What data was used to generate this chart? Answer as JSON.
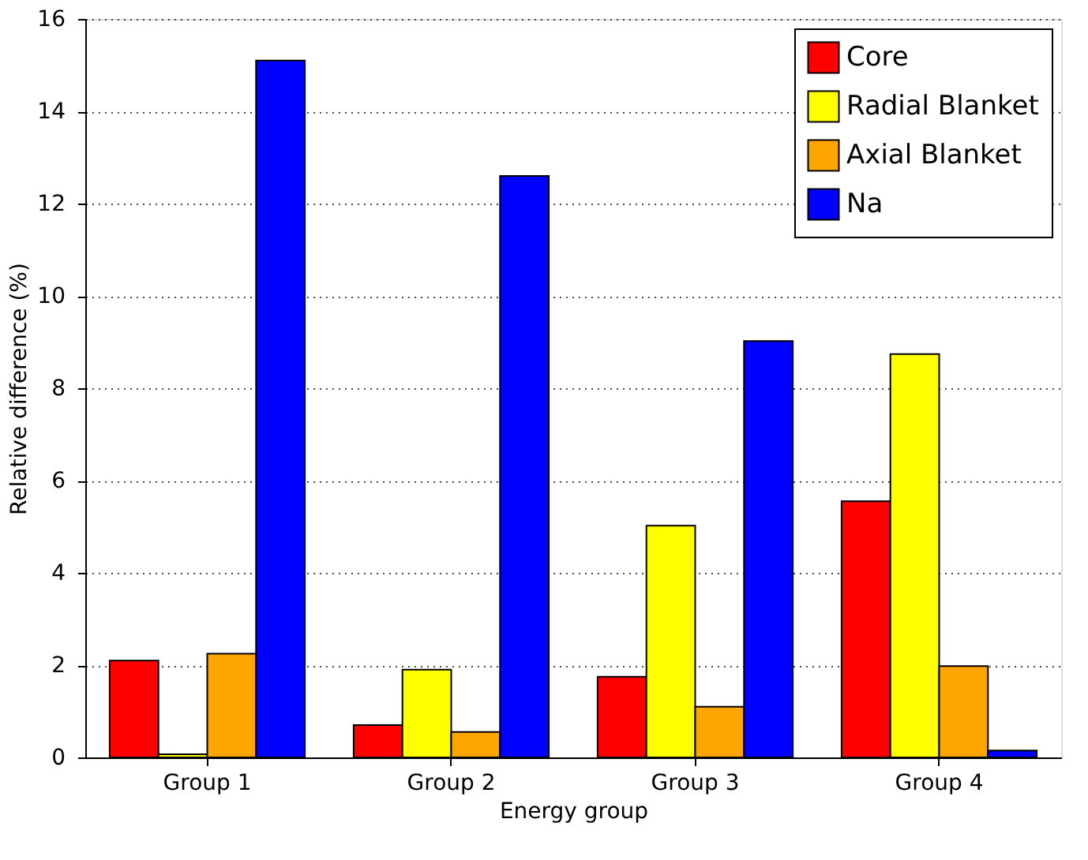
{
  "chart_data": {
    "type": "bar",
    "xlabel": "Energy group",
    "ylabel": "Relative difference (%)",
    "categories": [
      "Group 1",
      "Group 2",
      "Group 3",
      "Group 4"
    ],
    "series": [
      {
        "name": "Core",
        "color": "#ff0000",
        "values": [
          2.1,
          0.7,
          1.75,
          5.55
        ]
      },
      {
        "name": "Radial Blanket",
        "color": "#ffff00",
        "values": [
          0.07,
          1.9,
          5.02,
          8.74
        ]
      },
      {
        "name": "Axial Blanket",
        "color": "#ffa500",
        "values": [
          2.25,
          0.55,
          1.1,
          1.98
        ]
      },
      {
        "name": "Na",
        "color": "#0000ff",
        "values": [
          15.1,
          12.6,
          9.02,
          0.15
        ]
      }
    ],
    "ylim": [
      0,
      16
    ],
    "yticks": [
      0,
      2,
      4,
      6,
      8,
      10,
      12,
      14,
      16
    ],
    "grid": "y",
    "legend": "top right"
  }
}
